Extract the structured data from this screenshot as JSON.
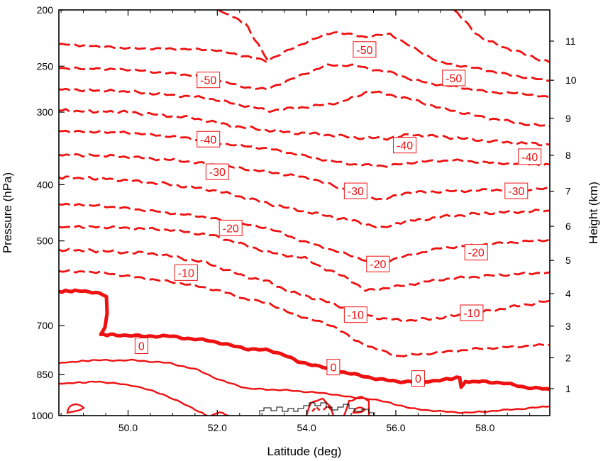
{
  "chart_data": {
    "type": "contour",
    "xlabel": "Latitude (deg)",
    "ylabel_left": "Pressure (hPa)",
    "ylabel_right": "Height (km)",
    "xlim": [
      48.45,
      59.45
    ],
    "ylim_pressure": [
      1000,
      200
    ],
    "x_ticks": [
      50,
      52,
      54,
      56,
      58
    ],
    "x_tick_labels": [
      "50.0",
      "52.0",
      "54.0",
      "56.0",
      "58.0"
    ],
    "y_left_ticks": [
      200,
      250,
      300,
      400,
      500,
      700,
      850,
      1000
    ],
    "y_left_tick_labels": [
      "200",
      "250",
      "300",
      "400",
      "500",
      "700",
      "850",
      "1000"
    ],
    "y_right_ticks": [
      1,
      2,
      3,
      4,
      5,
      6,
      7,
      8,
      9,
      10,
      11
    ],
    "y_right_tick_labels": [
      "1",
      "2",
      "3",
      "4",
      "5",
      "6",
      "7",
      "8",
      "9",
      "10",
      "11"
    ],
    "contour_color": "#ee1111",
    "terrain_color": "#000000",
    "contour_labels": [
      {
        "text": "-50",
        "x": 55.3,
        "p": 234
      },
      {
        "text": "-50",
        "x": 51.8,
        "p": 264
      },
      {
        "text": "-50",
        "x": 57.3,
        "p": 262
      },
      {
        "text": "-40",
        "x": 51.8,
        "p": 334
      },
      {
        "text": "-40",
        "x": 56.2,
        "p": 342
      },
      {
        "text": "-40",
        "x": 59.0,
        "p": 358
      },
      {
        "text": "-30",
        "x": 52.0,
        "p": 380
      },
      {
        "text": "-30",
        "x": 55.1,
        "p": 410
      },
      {
        "text": "-30",
        "x": 58.7,
        "p": 410
      },
      {
        "text": "-20",
        "x": 52.3,
        "p": 475
      },
      {
        "text": "-20",
        "x": 55.6,
        "p": 548
      },
      {
        "text": "-20",
        "x": 57.8,
        "p": 523
      },
      {
        "text": "-10",
        "x": 51.3,
        "p": 567
      },
      {
        "text": "-10",
        "x": 55.1,
        "p": 670
      },
      {
        "text": "-10",
        "x": 57.7,
        "p": 665
      },
      {
        "text": "0",
        "x": 50.3,
        "p": 758
      },
      {
        "text": "0",
        "x": 54.6,
        "p": 825
      },
      {
        "text": "0",
        "x": 56.5,
        "p": 863
      }
    ],
    "contour_levels": [
      -60,
      -50,
      -40,
      -30,
      -20,
      -10,
      0,
      10,
      20
    ]
  }
}
